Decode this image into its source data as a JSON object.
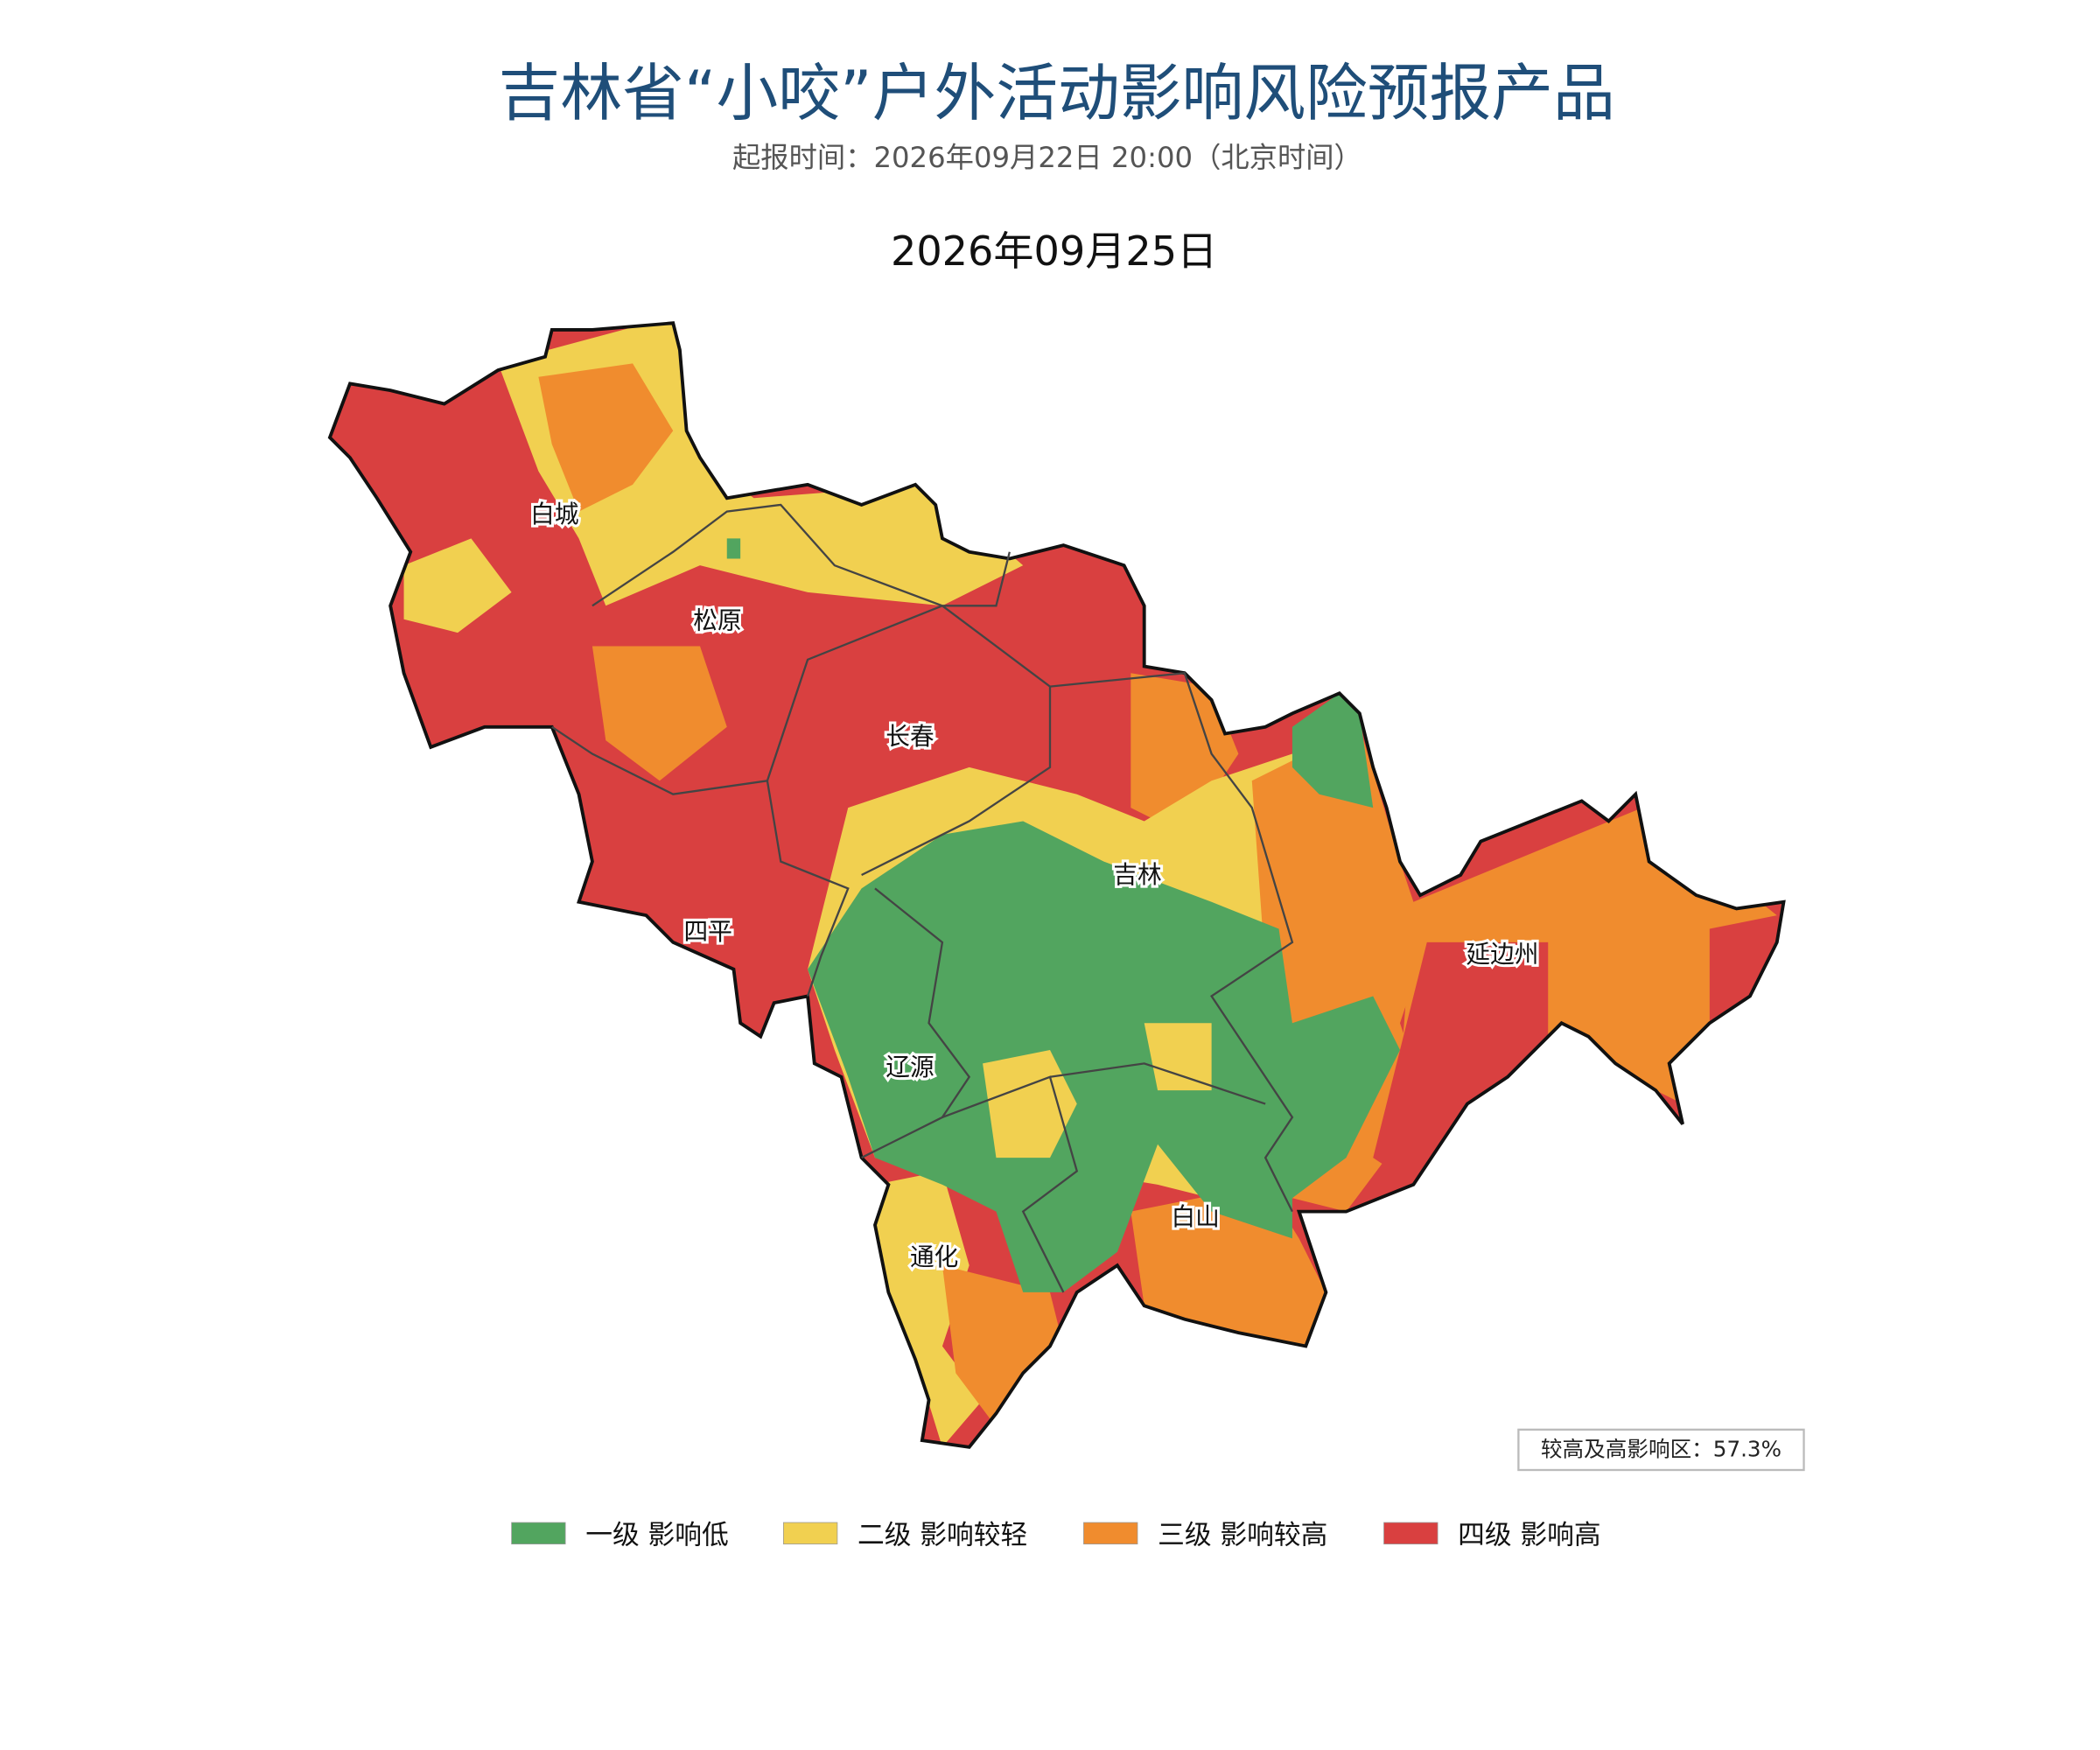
{
  "header": {
    "title": "吉林省“小咬”户外活动影响风险预报产品",
    "subtitle": "起报时间：2026年09月22日 20:00（北京时间）"
  },
  "map": {
    "date": "2026年09月25日",
    "cities": [
      "白城",
      "松原",
      "长春",
      "吉林",
      "四平",
      "延边州",
      "辽源",
      "白山",
      "通化"
    ],
    "stat": "较高及高影响区：57.3%"
  },
  "legend": [
    {
      "label": "一级 影响低",
      "color": "#52a55f"
    },
    {
      "label": "二级 影响较轻",
      "color": "#f1d050"
    },
    {
      "label": "三级 影响较高",
      "color": "#f08c2e"
    },
    {
      "label": "四级 影响高",
      "color": "#d94040"
    }
  ]
}
